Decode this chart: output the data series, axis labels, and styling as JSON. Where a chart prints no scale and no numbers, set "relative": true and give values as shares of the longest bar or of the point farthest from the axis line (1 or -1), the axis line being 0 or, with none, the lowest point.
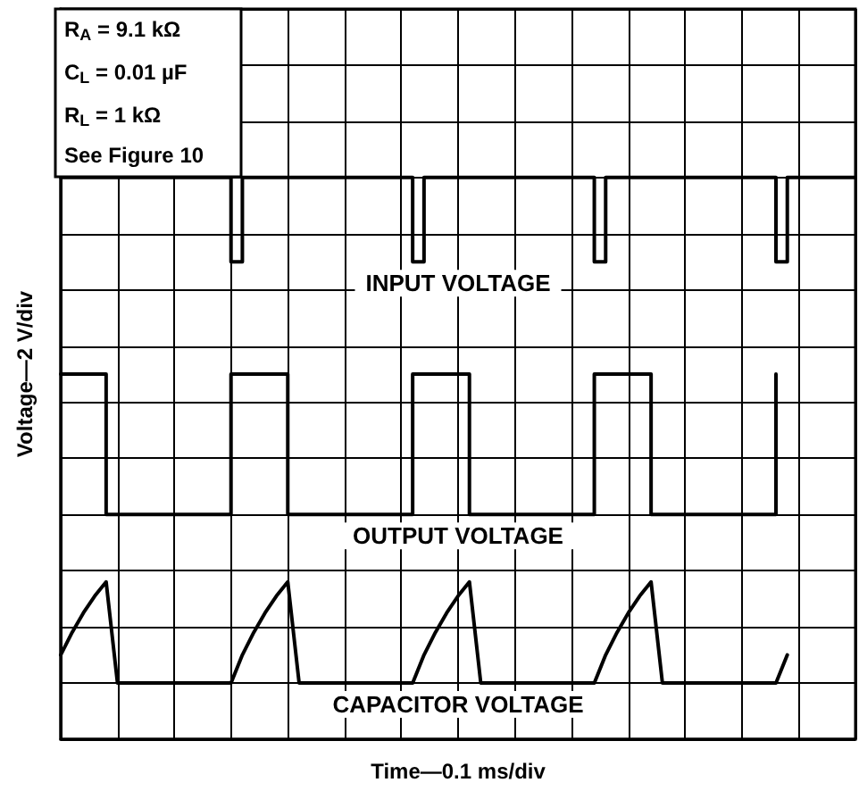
{
  "chart_data": {
    "type": "step",
    "relative": true,
    "xlabel": "Time—0.1 ms/div",
    "ylabel": "Voltage—2 V/div",
    "categories": [
      null,
      null,
      null,
      null,
      null,
      null,
      null,
      null,
      null,
      null,
      null,
      null,
      null,
      null,
      null,
      null,
      null,
      null,
      null,
      null,
      null,
      null,
      null,
      null,
      null,
      null,
      null,
      null,
      null,
      null,
      null,
      null,
      null,
      null,
      null,
      null,
      null,
      null,
      null,
      null,
      null,
      null,
      null,
      null,
      null,
      null,
      null,
      null,
      null,
      null,
      null,
      null,
      null,
      null,
      null,
      null,
      null,
      null,
      null,
      null,
      null,
      null,
      null,
      null,
      null,
      null,
      null,
      null,
      null,
      null,
      null
    ],
    "tick_labels": false,
    "grid": true,
    "marker": "none",
    "line_style": "solid",
    "series": [
      {
        "name": "INPUT VOLTAGE",
        "color": "#000000",
        "values": [
          1,
          1,
          1,
          1,
          1,
          1,
          1,
          1,
          1,
          1,
          1,
          1,
          1,
          1,
          1,
          0.85,
          1,
          1,
          1,
          1,
          1,
          1,
          1,
          1,
          1,
          1,
          1,
          1,
          1,
          1,
          1,
          0.85,
          1,
          1,
          1,
          1,
          1,
          1,
          1,
          1,
          1,
          1,
          1,
          1,
          1,
          1,
          1,
          0.85,
          1,
          1,
          1,
          1,
          1,
          1,
          1,
          1,
          1,
          1,
          1,
          1,
          1,
          1,
          1,
          0.85,
          1,
          1,
          1,
          1,
          1,
          1,
          1
        ]
      },
      {
        "name": "OUTPUT VOLTAGE",
        "color": "#000000",
        "values": [
          0.65,
          0.65,
          0.65,
          0.65,
          0.4,
          0.4,
          0.4,
          0.4,
          0.4,
          0.4,
          0.4,
          0.4,
          0.4,
          0.4,
          0.4,
          0.65,
          0.65,
          0.65,
          0.65,
          0.65,
          0.4,
          0.4,
          0.4,
          0.4,
          0.4,
          0.4,
          0.4,
          0.4,
          0.4,
          0.4,
          0.4,
          0.65,
          0.65,
          0.65,
          0.65,
          0.65,
          0.4,
          0.4,
          0.4,
          0.4,
          0.4,
          0.4,
          0.4,
          0.4,
          0.4,
          0.4,
          0.4,
          0.65,
          0.65,
          0.65,
          0.65,
          0.65,
          0.4,
          0.4,
          0.4,
          0.4,
          0.4,
          0.4,
          0.4,
          0.4,
          0.4,
          0.4,
          0.4,
          0.65,
          null,
          null,
          null,
          null,
          null,
          null,
          null
        ]
      },
      {
        "name": "CAPACITOR VOLTAGE",
        "type": "line",
        "color": "#000000",
        "values": [
          0.15,
          0.19,
          0.225,
          0.255,
          0.28,
          0.1,
          0.1,
          0.1,
          0.1,
          0.1,
          0.1,
          0.1,
          0.1,
          0.1,
          0.1,
          0.1,
          0.15,
          0.19,
          0.225,
          0.255,
          0.28,
          0.1,
          0.1,
          0.1,
          0.1,
          0.1,
          0.1,
          0.1,
          0.1,
          0.1,
          0.1,
          0.1,
          0.15,
          0.19,
          0.225,
          0.255,
          0.28,
          0.1,
          0.1,
          0.1,
          0.1,
          0.1,
          0.1,
          0.1,
          0.1,
          0.1,
          0.1,
          0.1,
          0.15,
          0.19,
          0.225,
          0.255,
          0.28,
          0.1,
          0.1,
          0.1,
          0.1,
          0.1,
          0.1,
          0.1,
          0.1,
          0.1,
          0.1,
          0.1,
          0.15,
          null,
          null,
          null,
          null,
          null,
          null
        ]
      }
    ],
    "annotations": [
      "R$_{A}$ = 9.1 kΩ",
      "C$_{L}$ = 0.01 µF",
      "R$_{L}$ = 1 kΩ",
      "See Figure 10"
    ]
  }
}
